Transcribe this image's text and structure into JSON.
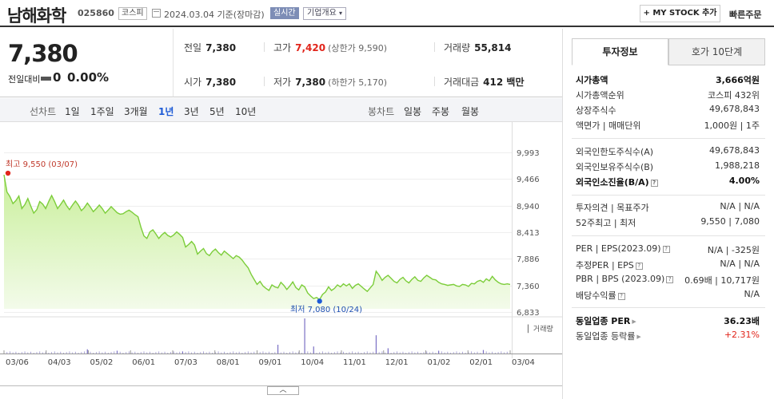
{
  "header": {
    "stock_name": "남해화학",
    "stock_code": "025860",
    "market": "코스피",
    "date_text": "2024.03.04  기준(장마감)",
    "realtime_label": "실시간",
    "corp_info_label": "기업개요",
    "mystock_label": "+ MY STOCK 추가",
    "quick_order_label": "빠른주문"
  },
  "price": {
    "current": "7,380",
    "change_label": "전일대비",
    "change_value": "0",
    "change_pct": "0.00%"
  },
  "stats": {
    "prev_close_label": "전일",
    "prev_close": "7,380",
    "high_label": "고가",
    "high": "7,420",
    "upper_limit": "(상한가 9,590)",
    "volume_label": "거래량",
    "volume": "55,814",
    "open_label": "시가",
    "open": "7,380",
    "low_label": "저가",
    "low": "7,380",
    "lower_limit": "(하한가 5,170)",
    "amount_label": "거래대금",
    "amount": "412 백만"
  },
  "tabs": {
    "line_label": "선차트",
    "periods": [
      "1일",
      "1주일",
      "3개월",
      "1년",
      "3년",
      "5년",
      "10년"
    ],
    "active_period": "1년",
    "candle_label": "봉차트",
    "candles": [
      "일봉",
      "주봉",
      "월봉"
    ]
  },
  "chart_data": {
    "type": "line",
    "y_ticks": [
      "9,993",
      "9,466",
      "8,940",
      "8,413",
      "7,886",
      "7,360",
      "6,833"
    ],
    "y_tick_values": [
      9993,
      9466,
      8940,
      8413,
      7886,
      7360,
      6833
    ],
    "ylim": [
      6700,
      10100
    ],
    "x_ticks": [
      "03/06",
      "04/03",
      "05/02",
      "06/01",
      "07/03",
      "08/01",
      "09/01",
      "10/04",
      "11/01",
      "12/01",
      "01/02",
      "02/01",
      "03/04"
    ],
    "high_annotation": "최고  9,550 (03/07)",
    "low_annotation": "최저  7,080 (10/24)",
    "volume_label": "거래량",
    "series": [
      {
        "values": [
          9550,
          9210,
          9120,
          8980,
          9040,
          9130,
          8880,
          8960,
          9080,
          8930,
          8790,
          8860,
          9020,
          8970,
          8880,
          9020,
          9140,
          9020,
          8880,
          8960,
          9050,
          8940,
          8860,
          8950,
          9030,
          8950,
          8840,
          8900,
          8990,
          8910,
          8820,
          8880,
          8950,
          8880,
          8790,
          8850,
          8920,
          8860,
          8800,
          8770,
          8780,
          8820,
          8850,
          8810,
          8760,
          8720,
          8510,
          8340,
          8290,
          8420,
          8460,
          8380,
          8290,
          8360,
          8410,
          8350,
          8320,
          8360,
          8420,
          8370,
          8310,
          8120,
          8170,
          8230,
          8160,
          7980,
          8040,
          8090,
          7990,
          7950,
          8030,
          8080,
          8010,
          7960,
          8040,
          7990,
          7940,
          7890,
          7950,
          7920,
          7860,
          7780,
          7710,
          7580,
          7480,
          7380,
          7440,
          7350,
          7300,
          7260,
          7370,
          7330,
          7310,
          7420,
          7360,
          7280,
          7350,
          7430,
          7320,
          7270,
          7370,
          7330,
          7210,
          7150,
          7100,
          7120,
          7080,
          7180,
          7230,
          7330,
          7260,
          7300,
          7370,
          7330,
          7390,
          7350,
          7390,
          7300,
          7360,
          7390,
          7340,
          7290,
          7240,
          7310,
          7380,
          7640,
          7560,
          7460,
          7520,
          7560,
          7500,
          7440,
          7410,
          7480,
          7520,
          7450,
          7410,
          7480,
          7530,
          7460,
          7440,
          7510,
          7560,
          7520,
          7480,
          7470,
          7420,
          7390,
          7380,
          7360,
          7370,
          7380,
          7350,
          7340,
          7380,
          7370,
          7340,
          7400,
          7390,
          7440,
          7460,
          7420,
          7490,
          7450,
          7540,
          7470,
          7420,
          7390,
          7380,
          7390,
          7380
        ]
      }
    ],
    "volume_spikes": [
      {
        "x_index": 28,
        "rel": 0.12
      },
      {
        "x_index": 38,
        "rel": 0.08
      },
      {
        "x_index": 60,
        "rel": 0.06
      },
      {
        "x_index": 92,
        "rel": 0.25
      },
      {
        "x_index": 101,
        "rel": 1.0
      },
      {
        "x_index": 104,
        "rel": 0.2
      },
      {
        "x_index": 125,
        "rel": 0.52
      },
      {
        "x_index": 129,
        "rel": 0.15
      },
      {
        "x_index": 146,
        "rel": 0.08
      },
      {
        "x_index": 161,
        "rel": 0.1
      }
    ]
  },
  "toggle_label": "︿",
  "right_panel": {
    "tab_on": "투자정보",
    "tab_off": "호가 10단계",
    "g1": [
      {
        "k": "시가총액",
        "v": "3,666억원",
        "bold": true
      },
      {
        "k": "시가총액순위",
        "v": "코스피 432위"
      },
      {
        "k": "상장주식수",
        "v": "49,678,843"
      },
      {
        "k": "액면가 | 매매단위",
        "v": "1,000원 | 1주"
      }
    ],
    "g2": [
      {
        "k": "외국인한도주식수(A)",
        "v": "49,678,843"
      },
      {
        "k": "외국인보유주식수(B)",
        "v": "1,988,218"
      },
      {
        "k": "외국인소진율(B/A)",
        "v": "4.00%",
        "bold": true
      }
    ],
    "g3": [
      {
        "k": "투자의견 | 목표주가",
        "v": "N/A | N/A"
      },
      {
        "k": "52주최고 | 최저",
        "v": "9,550 | 7,080"
      }
    ],
    "g4": [
      {
        "k": "PER | EPS(2023.09)",
        "v": "N/A | -325원"
      },
      {
        "k": "추정PER | EPS",
        "v": "N/A | N/A"
      },
      {
        "k": "PBR | BPS (2023.09)",
        "v": "0.69배 | 10,717원"
      },
      {
        "k": "배당수익률",
        "v": "N/A"
      }
    ],
    "g5": [
      {
        "k": "동일업종 PER",
        "v": "36.23배",
        "bold": true
      },
      {
        "k": "동일업종 등락률",
        "v": "+2.31%",
        "red": true
      }
    ]
  }
}
